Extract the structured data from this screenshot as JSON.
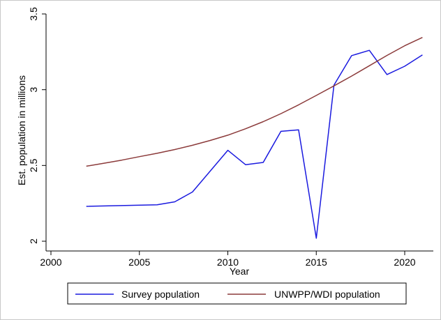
{
  "chart_data": {
    "type": "line",
    "title": "",
    "xlabel": "Year",
    "ylabel": "Est. population in millions",
    "xlim": [
      2000,
      2021
    ],
    "ylim": [
      2,
      3.5
    ],
    "xticks": [
      2000,
      2005,
      2010,
      2015,
      2020
    ],
    "yticks": [
      2,
      2.5,
      3,
      3.5
    ],
    "xtick_labels": [
      "2000",
      "2005",
      "2010",
      "2015",
      "2020"
    ],
    "ytick_labels": [
      "2",
      "2.5",
      "3",
      "3.5"
    ],
    "grid": false,
    "legend_position": "bottom",
    "series": [
      {
        "name": "Survey population",
        "color": "#1a1adf",
        "x": [
          2002,
          2006,
          2007,
          2008,
          2010,
          2011,
          2012,
          2013,
          2014,
          2015,
          2016,
          2017,
          2018,
          2019,
          2020,
          2021
        ],
        "y": [
          2.23,
          2.24,
          2.26,
          2.325,
          2.6,
          2.505,
          2.52,
          2.725,
          2.735,
          2.02,
          3.03,
          3.225,
          3.26,
          3.1,
          3.155,
          3.23
        ]
      },
      {
        "name": "UNWPP/WDI population",
        "color": "#8b3a3a",
        "x": [
          2002,
          2003,
          2004,
          2005,
          2006,
          2007,
          2008,
          2009,
          2010,
          2011,
          2012,
          2013,
          2014,
          2015,
          2016,
          2017,
          2018,
          2019,
          2020,
          2021
        ],
        "y": [
          2.495,
          2.515,
          2.535,
          2.558,
          2.58,
          2.605,
          2.633,
          2.665,
          2.7,
          2.742,
          2.789,
          2.842,
          2.9,
          2.962,
          3.025,
          3.09,
          3.158,
          3.226,
          3.29,
          3.345
        ]
      }
    ]
  }
}
